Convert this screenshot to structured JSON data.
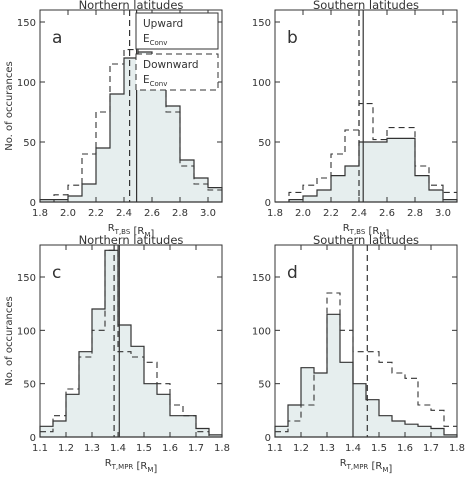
{
  "figure_colors": {
    "fill": "#e6eeee",
    "line": "#333333",
    "axis": "#333333",
    "background": "#ffffff"
  },
  "ylabel": "No. of occurances",
  "ylabel_panels": [
    0,
    2
  ],
  "legend": {
    "upward": "Upward",
    "downward": "Downward",
    "econv_main": "E",
    "econv_sub": "Conv"
  },
  "chart_data": [
    {
      "id": "a",
      "panel_label": "a",
      "title": "Northern latitudes",
      "type": "histogram",
      "xlabel_main": "R",
      "xlabel_sub": "T,BS",
      "xlabel_rest": " [R",
      "xlabel_unit_sub": "M",
      "xlabel_end": "]",
      "xlim": [
        1.8,
        3.1
      ],
      "ylim": [
        0,
        160
      ],
      "xticks": [
        1.8,
        2.0,
        2.2,
        2.4,
        2.6,
        2.8,
        3.0
      ],
      "xtick_labels": [
        "1.8",
        "2.0",
        "2.2",
        "2.4",
        "2.6",
        "2.8",
        "3.0"
      ],
      "yticks": [
        0,
        50,
        100,
        150
      ],
      "ytick_labels": [
        "0",
        "50",
        "100",
        "150"
      ],
      "bins": [
        1.8,
        1.9,
        2.0,
        2.1,
        2.2,
        2.3,
        2.4,
        2.5,
        2.6,
        2.7,
        2.8,
        2.9,
        3.0,
        3.1
      ],
      "series": [
        {
          "name": "Upward E_Conv",
          "style": "solid-filled",
          "values": [
            2,
            2,
            5,
            15,
            45,
            90,
            120,
            125,
            95,
            80,
            35,
            20,
            12
          ]
        },
        {
          "name": "Downward E_Conv",
          "style": "dashed",
          "values": [
            0,
            6,
            14,
            40,
            75,
            115,
            127,
            125,
            115,
            75,
            30,
            15,
            10
          ]
        }
      ],
      "vlines": [
        {
          "x": 2.49,
          "style": "solid"
        },
        {
          "x": 2.44,
          "style": "dashed"
        }
      ],
      "show_legend": true
    },
    {
      "id": "b",
      "panel_label": "b",
      "title": "Southern latitudes",
      "type": "histogram",
      "xlabel_main": "R",
      "xlabel_sub": "T,BS",
      "xlabel_rest": " [R",
      "xlabel_unit_sub": "M",
      "xlabel_end": "]",
      "xlim": [
        1.8,
        3.1
      ],
      "ylim": [
        0,
        160
      ],
      "xticks": [
        1.8,
        2.0,
        2.2,
        2.4,
        2.6,
        2.8,
        3.0
      ],
      "xtick_labels": [
        "1.8",
        "2.0",
        "2.2",
        "2.4",
        "2.6",
        "2.8",
        "3.0"
      ],
      "yticks": [
        0,
        50,
        100,
        150
      ],
      "ytick_labels": [
        "0",
        "50",
        "100",
        "150"
      ],
      "bins": [
        1.8,
        1.9,
        2.0,
        2.1,
        2.2,
        2.3,
        2.4,
        2.5,
        2.6,
        2.7,
        2.8,
        2.9,
        3.0,
        3.1
      ],
      "series": [
        {
          "name": "Upward E_Conv",
          "style": "solid-filled",
          "values": [
            0,
            2,
            5,
            10,
            22,
            30,
            50,
            50,
            53,
            53,
            22,
            10,
            2
          ]
        },
        {
          "name": "Downward E_Conv",
          "style": "dashed",
          "values": [
            0,
            8,
            14,
            20,
            40,
            60,
            82,
            52,
            62,
            62,
            30,
            14,
            8
          ]
        }
      ],
      "vlines": [
        {
          "x": 2.43,
          "style": "solid"
        },
        {
          "x": 2.4,
          "style": "dashed"
        }
      ],
      "show_legend": false
    },
    {
      "id": "c",
      "panel_label": "c",
      "title": "Northern latitudes",
      "type": "histogram",
      "xlabel_main": "R",
      "xlabel_sub": "T,MPR",
      "xlabel_rest": " [R",
      "xlabel_unit_sub": "M",
      "xlabel_end": "]",
      "xlim": [
        1.1,
        1.8
      ],
      "ylim": [
        0,
        180
      ],
      "xticks": [
        1.1,
        1.2,
        1.3,
        1.4,
        1.5,
        1.6,
        1.7,
        1.8
      ],
      "xtick_labels": [
        "1.1",
        "1.2",
        "1.3",
        "1.4",
        "1.5",
        "1.6",
        "1.7",
        "1.8"
      ],
      "yticks": [
        0,
        50,
        100,
        150
      ],
      "ytick_labels": [
        "0",
        "50",
        "100",
        "150"
      ],
      "bins": [
        1.1,
        1.15,
        1.2,
        1.25,
        1.3,
        1.35,
        1.4,
        1.45,
        1.5,
        1.55,
        1.6,
        1.65,
        1.7,
        1.75,
        1.8
      ],
      "series": [
        {
          "name": "Upward E_Conv",
          "style": "solid-filled",
          "values": [
            10,
            15,
            40,
            80,
            120,
            175,
            105,
            85,
            50,
            40,
            20,
            20,
            8,
            2
          ]
        },
        {
          "name": "Downward E_Conv",
          "style": "dashed",
          "values": [
            5,
            20,
            45,
            75,
            100,
            175,
            80,
            75,
            70,
            50,
            30,
            20,
            5,
            0
          ]
        }
      ],
      "vlines": [
        {
          "x": 1.405,
          "style": "solid"
        },
        {
          "x": 1.385,
          "style": "dashed"
        }
      ],
      "show_legend": false
    },
    {
      "id": "d",
      "panel_label": "d",
      "title": "Southern latitudes",
      "type": "histogram",
      "xlabel_main": "R",
      "xlabel_sub": "T,MPR",
      "xlabel_rest": " [R",
      "xlabel_unit_sub": "M",
      "xlabel_end": "]",
      "xlim": [
        1.1,
        1.8
      ],
      "ylim": [
        0,
        180
      ],
      "xticks": [
        1.1,
        1.2,
        1.3,
        1.4,
        1.5,
        1.6,
        1.7,
        1.8
      ],
      "xtick_labels": [
        "1.1",
        "1.2",
        "1.3",
        "1.4",
        "1.5",
        "1.6",
        "1.7",
        "1.8"
      ],
      "yticks": [
        0,
        50,
        100,
        150
      ],
      "ytick_labels": [
        "0",
        "50",
        "100",
        "150"
      ],
      "bins": [
        1.1,
        1.15,
        1.2,
        1.25,
        1.3,
        1.35,
        1.4,
        1.45,
        1.5,
        1.55,
        1.6,
        1.65,
        1.7,
        1.75,
        1.8
      ],
      "series": [
        {
          "name": "Upward E_Conv",
          "style": "solid-filled",
          "values": [
            10,
            30,
            65,
            60,
            115,
            70,
            50,
            35,
            20,
            15,
            12,
            10,
            8,
            2
          ]
        },
        {
          "name": "Downward E_Conv",
          "style": "dashed",
          "values": [
            5,
            15,
            30,
            60,
            135,
            100,
            80,
            80,
            70,
            60,
            55,
            30,
            25,
            10
          ]
        }
      ],
      "vlines": [
        {
          "x": 1.4,
          "style": "solid"
        },
        {
          "x": 1.455,
          "style": "dashed"
        }
      ],
      "show_legend": false
    }
  ]
}
